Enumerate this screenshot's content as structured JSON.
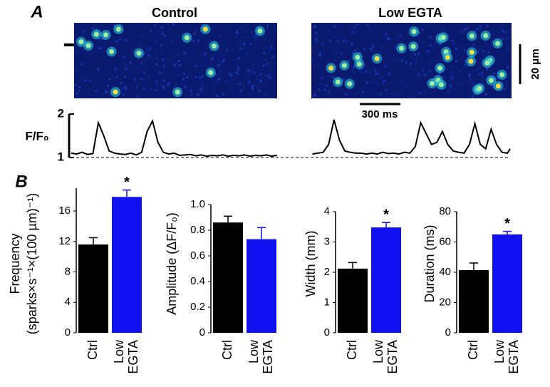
{
  "figure": {
    "panel_a": "A",
    "panel_b": "B",
    "image_titles": [
      "Control",
      "Low EGTA"
    ],
    "scale_bars": [
      "20 μm",
      "300 ms"
    ]
  },
  "chart_data": [
    {
      "type": "line",
      "ylabel": "F/F₀",
      "ylim": [
        1,
        2
      ],
      "yticks": [
        1,
        2
      ],
      "xlim": [
        0,
        3240
      ],
      "baseline_dashed": true,
      "color": "#000000",
      "x": [
        0,
        40,
        80,
        120,
        160,
        200,
        240,
        280,
        320,
        360,
        400,
        440,
        480,
        520,
        560,
        600,
        640,
        680,
        720,
        760,
        800,
        840,
        880,
        920,
        960,
        1000,
        1040,
        1080,
        1120,
        1160,
        1200,
        1240,
        1280,
        1320,
        1360,
        1400,
        1440,
        1480,
        1520,
        1640,
        1780,
        1820,
        1860,
        1900,
        1940,
        1980,
        2020,
        2060,
        2100,
        2140,
        2180,
        2220,
        2260,
        2300,
        2340,
        2380,
        2420,
        2460,
        2500,
        2540,
        2580,
        2620,
        2660,
        2700,
        2740,
        2780,
        2820,
        2860,
        2900,
        2940,
        2980,
        3020,
        3060,
        3100,
        3140,
        3180,
        3220,
        3240
      ],
      "values": [
        1.1,
        1.08,
        1.12,
        1.07,
        1.09,
        1.8,
        1.5,
        1.15,
        1.1,
        1.08,
        1.07,
        1.1,
        1.06,
        1.12,
        1.6,
        1.84,
        1.35,
        1.12,
        1.08,
        1.1,
        1.05,
        1.06,
        1.07,
        1.04,
        1.06,
        1.03,
        1.05,
        1.04,
        1.06,
        1.03,
        1.05,
        1.04,
        1.06,
        1.03,
        1.05,
        1.04,
        1.06,
        1.03,
        1.05,
        null,
        1.08,
        1.1,
        1.12,
        1.3,
        1.87,
        1.4,
        1.15,
        1.12,
        1.1,
        1.1,
        1.08,
        1.1,
        1.08,
        1.12,
        1.09,
        1.1,
        1.08,
        1.12,
        1.1,
        1.25,
        1.8,
        1.55,
        1.3,
        1.35,
        1.6,
        1.3,
        1.15,
        1.12,
        1.1,
        1.3,
        1.78,
        1.3,
        1.2,
        1.65,
        1.3,
        1.12,
        1.1,
        1.2
      ]
    },
    {
      "type": "bar",
      "ylabel": [
        "Frequency",
        "(sparks×s⁻¹×(100 µm)⁻¹)"
      ],
      "categories": [
        "Ctrl",
        "Low EGTA"
      ],
      "values": [
        11.6,
        17.85
      ],
      "errors": [
        0.9,
        0.9
      ],
      "colors": [
        "#000000",
        "#1010f0"
      ],
      "significance": [
        null,
        "*"
      ],
      "ylim": [
        0,
        19
      ],
      "yticks": [
        0,
        4,
        8,
        12,
        16
      ]
    },
    {
      "type": "bar",
      "ylabel": [
        "Amplitude (ΔF/F₀)"
      ],
      "categories": [
        "Ctrl",
        "Low EGTA"
      ],
      "values": [
        0.86,
        0.73
      ],
      "errors": [
        0.05,
        0.09
      ],
      "colors": [
        "#000000",
        "#1010f0"
      ],
      "significance": [
        null,
        null
      ],
      "ylim": [
        0,
        1.0
      ],
      "yticks": [
        0,
        0.2,
        0.4,
        0.6,
        0.8,
        {
          "value": 1.0,
          "label": "1.0"
        }
      ]
    },
    {
      "type": "bar",
      "ylabel": [
        "Width (mm)"
      ],
      "categories": [
        "Ctrl",
        "Low EGTA"
      ],
      "values": [
        2.12,
        3.48
      ],
      "errors": [
        0.2,
        0.16
      ],
      "colors": [
        "#000000",
        "#1010f0"
      ],
      "significance": [
        null,
        "*"
      ],
      "ylim": [
        0,
        4
      ],
      "yticks": [
        0,
        1,
        2,
        3,
        4
      ]
    },
    {
      "type": "bar",
      "ylabel": [
        "Duration (ms)"
      ],
      "categories": [
        "Ctrl",
        "Low EGTA"
      ],
      "values": [
        41.4,
        65
      ],
      "errors": [
        4.7,
        2
      ],
      "colors": [
        "#000000",
        "#1010f0"
      ],
      "significance": [
        null,
        "*"
      ],
      "ylim": [
        0,
        80
      ],
      "yticks": [
        0,
        20,
        40,
        60,
        80
      ]
    }
  ]
}
